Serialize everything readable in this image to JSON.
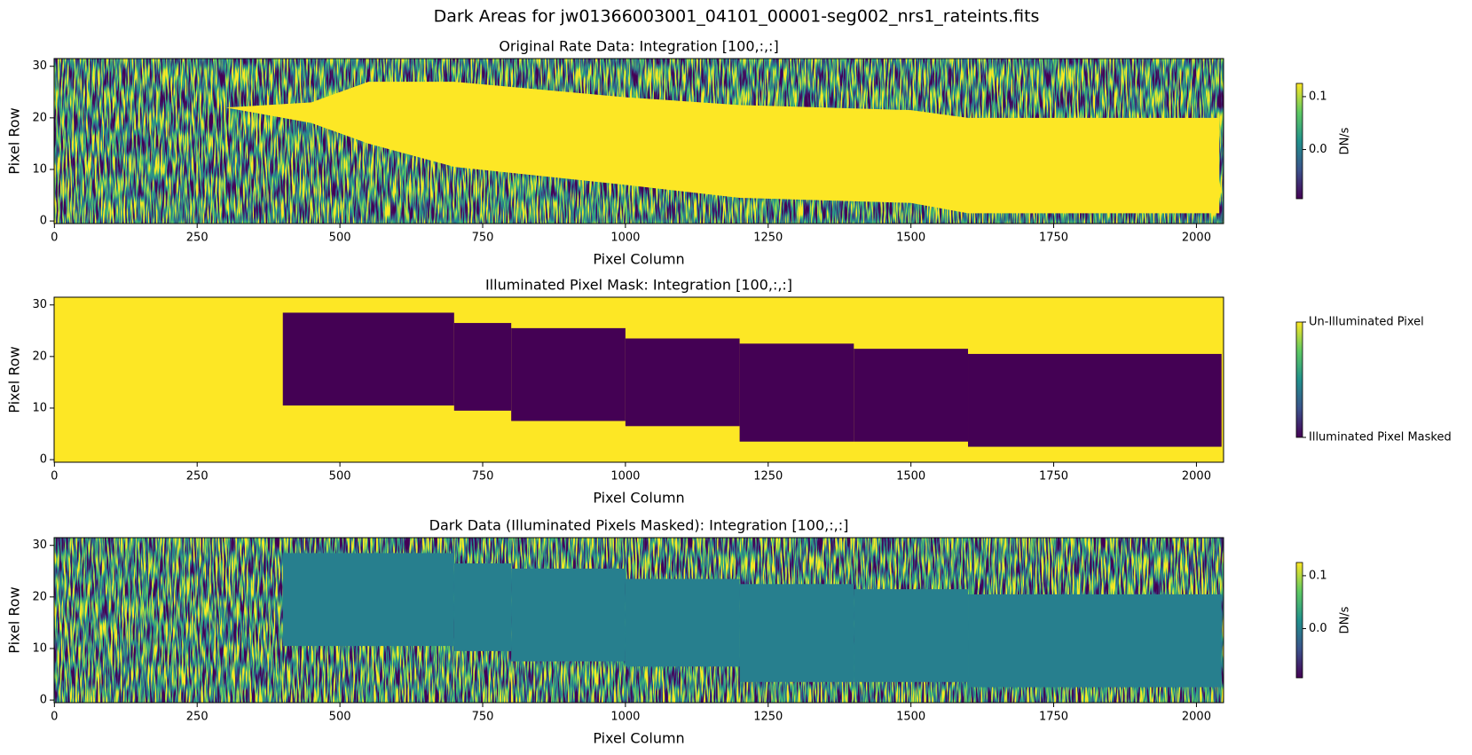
{
  "title": "Dark Areas for jw01366003001_04101_00001-seg002_nrs1_rateints.fits",
  "chart_data": [
    {
      "type": "heatmap",
      "title": "Original Rate Data: Integration [100,:,:]",
      "xlabel": "Pixel Column",
      "ylabel": "Pixel Row",
      "xlim": [
        -0.5,
        2047.5
      ],
      "ylim": [
        -0.5,
        31.5
      ],
      "xticks": [
        0,
        250,
        500,
        750,
        1000,
        1250,
        1500,
        1750,
        2000
      ],
      "yticks": [
        0,
        10,
        20,
        30
      ],
      "band": {
        "x": [
          300,
          450,
          550,
          700,
          1000,
          1200,
          1500,
          1600,
          2040
        ],
        "upper": [
          22,
          23,
          27,
          27,
          24,
          22.5,
          21.5,
          20,
          20
        ],
        "lower": [
          22,
          19,
          15,
          10.5,
          7,
          4.5,
          3.5,
          1.5,
          1.5
        ],
        "color": "#fde725"
      },
      "colorbar": {
        "label": "DN/s",
        "lim": [
          -0.093,
          0.125
        ],
        "ticks": [
          {
            "value": 0,
            "label": "0.0"
          },
          0.1
        ]
      }
    },
    {
      "type": "heatmap",
      "title": "Illuminated Pixel Mask: Integration [100,:,:]",
      "xlabel": "Pixel Column",
      "ylabel": "Pixel Row",
      "xlim": [
        -0.5,
        2047.5
      ],
      "ylim": [
        -0.5,
        31.5
      ],
      "xticks": [
        0,
        250,
        500,
        750,
        1000,
        1250,
        1500,
        1750,
        2000
      ],
      "yticks": [
        0,
        10,
        20,
        30
      ],
      "background": "#fde725",
      "region_color": "#440154",
      "regions": [
        {
          "x0": 400,
          "x1": 700,
          "y0": 10.5,
          "y1": 28.5
        },
        {
          "x0": 700,
          "x1": 800,
          "y0": 9.5,
          "y1": 26.5
        },
        {
          "x0": 800,
          "x1": 1000,
          "y0": 7.5,
          "y1": 25.5
        },
        {
          "x0": 1000,
          "x1": 1200,
          "y0": 6.5,
          "y1": 23.5
        },
        {
          "x0": 1200,
          "x1": 1400,
          "y0": 3.5,
          "y1": 22.5
        },
        {
          "x0": 1400,
          "x1": 1600,
          "y0": 3.5,
          "y1": 21.5
        },
        {
          "x0": 1600,
          "x1": 2044,
          "y0": 2.5,
          "y1": 20.5
        }
      ],
      "colorbar": {
        "lim": [
          0,
          1
        ],
        "ticks": [
          {
            "value": 0,
            "label": "Illuminated Pixel Masked"
          },
          {
            "value": 1,
            "label": "Un-Illuminated Pixel"
          }
        ]
      }
    },
    {
      "type": "heatmap",
      "title": "Dark Data (Illuminated Pixels Masked): Integration [100,:,:]",
      "xlabel": "Pixel Column",
      "ylabel": "Pixel Row",
      "xlim": [
        -0.5,
        2047.5
      ],
      "ylim": [
        -0.5,
        31.5
      ],
      "xticks": [
        0,
        250,
        500,
        750,
        1000,
        1250,
        1500,
        1750,
        2000
      ],
      "yticks": [
        0,
        10,
        20,
        30
      ],
      "region_color": "#277f8e",
      "regions": [
        {
          "x0": 400,
          "x1": 700,
          "y0": 10.5,
          "y1": 28.5
        },
        {
          "x0": 700,
          "x1": 800,
          "y0": 9.5,
          "y1": 26.5
        },
        {
          "x0": 800,
          "x1": 1000,
          "y0": 7.5,
          "y1": 25.5
        },
        {
          "x0": 1000,
          "x1": 1200,
          "y0": 6.5,
          "y1": 23.5
        },
        {
          "x0": 1200,
          "x1": 1400,
          "y0": 3.5,
          "y1": 22.5
        },
        {
          "x0": 1400,
          "x1": 1600,
          "y0": 3.5,
          "y1": 21.5
        },
        {
          "x0": 1600,
          "x1": 2044,
          "y0": 2.5,
          "y1": 20.5
        }
      ],
      "colorbar": {
        "label": "DN/s",
        "lim": [
          -0.093,
          0.125
        ],
        "ticks": [
          {
            "value": 0,
            "label": "0.0"
          },
          0.1
        ]
      }
    }
  ]
}
